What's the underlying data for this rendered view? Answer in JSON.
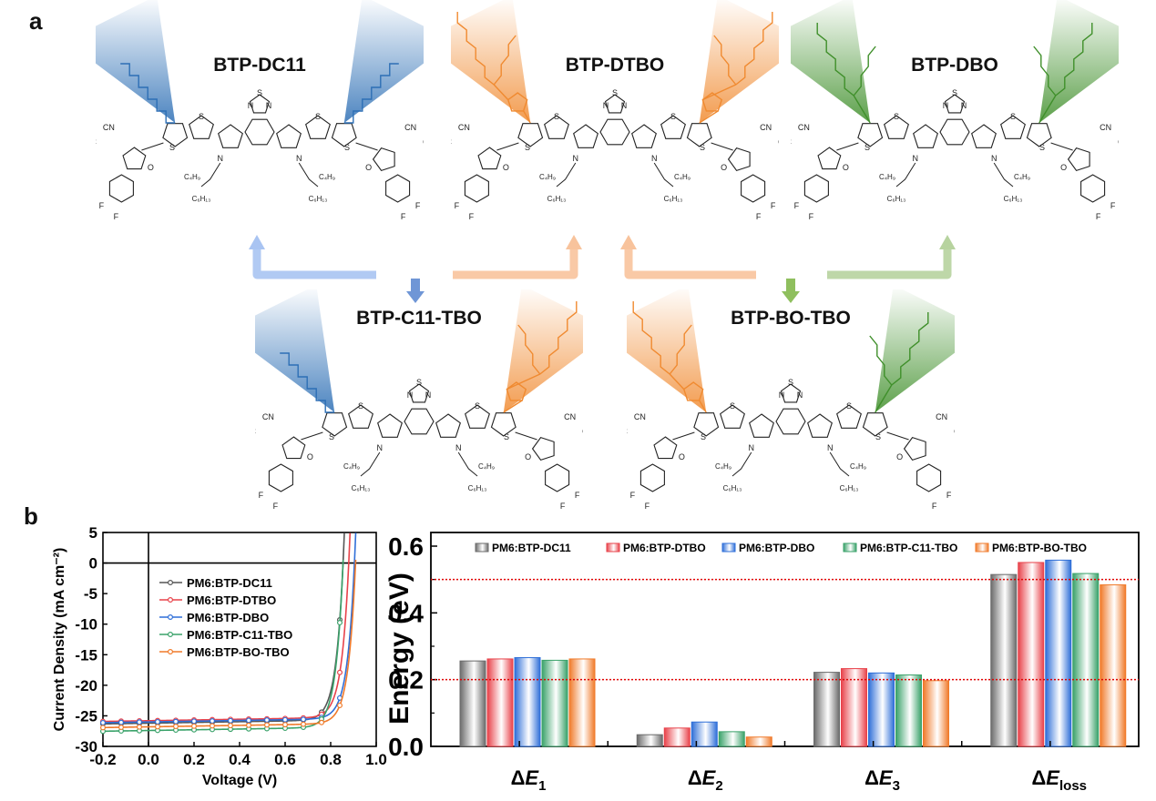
{
  "panel_labels": {
    "a": "a",
    "b": "b"
  },
  "molecules": [
    {
      "name": "BTP-DC11",
      "left_chain": "linear",
      "right_chain": "linear",
      "left_color": "#2d6fb5",
      "right_color": "#2d6fb5"
    },
    {
      "name": "BTP-DTBO",
      "left_chain": "thienyl-branched",
      "right_chain": "thienyl-branched",
      "left_color": "#f08a30",
      "right_color": "#f08a30"
    },
    {
      "name": "BTP-DBO",
      "left_chain": "branched",
      "right_chain": "branched",
      "left_color": "#3f8f2a",
      "right_color": "#3f8f2a"
    },
    {
      "name": "BTP-C11-TBO",
      "left_chain": "linear",
      "right_chain": "thienyl-branched",
      "left_color": "#2d6fb5",
      "right_color": "#f08a30"
    },
    {
      "name": "BTP-BO-TBO",
      "left_chain": "thienyl-branched",
      "right_chain": "branched",
      "left_color": "#f08a30",
      "right_color": "#3f8f2a"
    }
  ],
  "mol_labels": {
    "cn": "CN",
    "nc": "NC",
    "o": "O",
    "f": "F",
    "s": "S",
    "n": "N",
    "c4h9": "C₄H₉",
    "c6h13": "C₆H₁₃"
  },
  "arrow_colors": {
    "blue": "#a9c4f2",
    "orange": "#f8c39c",
    "green": "#b7d39f"
  },
  "chart_data": [
    {
      "type": "line",
      "title": "",
      "xlabel": "Voltage (V)",
      "ylabel": "Current Density (mA cm⁻²)",
      "xlim": [
        -0.2,
        1.0
      ],
      "ylim": [
        -30,
        5
      ],
      "xticks": [
        "-0.2",
        "0.0",
        "0.2",
        "0.4",
        "0.6",
        "0.8",
        "1.0"
      ],
      "yticks": [
        "5",
        "0",
        "-5",
        "-10",
        "-15",
        "-20",
        "-25",
        "-30"
      ],
      "legend_position": "center-left",
      "series": [
        {
          "name": "PM6:BTP-DC11",
          "color": "#555555",
          "jsc": -26.2,
          "voc": 0.855,
          "knee": 0.72
        },
        {
          "name": "PM6:BTP-DTBO",
          "color": "#e8424a",
          "jsc": -25.8,
          "voc": 0.88,
          "knee": 0.7
        },
        {
          "name": "PM6:BTP-DBO",
          "color": "#2f6fd8",
          "jsc": -26.0,
          "voc": 0.905,
          "knee": 0.74
        },
        {
          "name": "PM6:BTP-C11-TBO",
          "color": "#3aa26a",
          "jsc": -27.4,
          "voc": 0.855,
          "knee": 0.72
        },
        {
          "name": "PM6:BTP-BO-TBO",
          "color": "#f07a2a",
          "jsc": -26.8,
          "voc": 0.91,
          "knee": 0.78
        }
      ],
      "reference_lines": {
        "x": 0,
        "y": 0
      }
    },
    {
      "type": "bar",
      "title": "",
      "xlabel": "",
      "ylabel": "Energy (eV)",
      "ylim": [
        0,
        0.65
      ],
      "yticks": [
        "0.0",
        "0.2",
        "0.4",
        "0.6"
      ],
      "categories": [
        {
          "base": "ΔE",
          "sub": "1"
        },
        {
          "base": "ΔE",
          "sub": "2"
        },
        {
          "base": "ΔE",
          "sub": "3"
        },
        {
          "base": "ΔE",
          "sub": "loss"
        }
      ],
      "legend_position": "top",
      "series": [
        {
          "name": "PM6:BTP-DC11",
          "color": "#6b6b6b",
          "values": [
            0.256,
            0.035,
            0.222,
            0.515
          ]
        },
        {
          "name": "PM6:BTP-DTBO",
          "color": "#e8424a",
          "values": [
            0.262,
            0.055,
            0.233,
            0.551
          ]
        },
        {
          "name": "PM6:BTP-DBO",
          "color": "#2f6fd8",
          "values": [
            0.266,
            0.073,
            0.22,
            0.558
          ]
        },
        {
          "name": "PM6:BTP-C11-TBO",
          "color": "#3aa26a",
          "values": [
            0.258,
            0.044,
            0.214,
            0.518
          ]
        },
        {
          "name": "PM6:BTP-BO-TBO",
          "color": "#f07a2a",
          "values": [
            0.262,
            0.028,
            0.197,
            0.484
          ]
        }
      ],
      "reference_lines": [
        {
          "y": 0.5,
          "color": "#e00000",
          "style": "dotted"
        },
        {
          "y": 0.2,
          "color": "#e00000",
          "style": "dotted"
        }
      ]
    }
  ]
}
